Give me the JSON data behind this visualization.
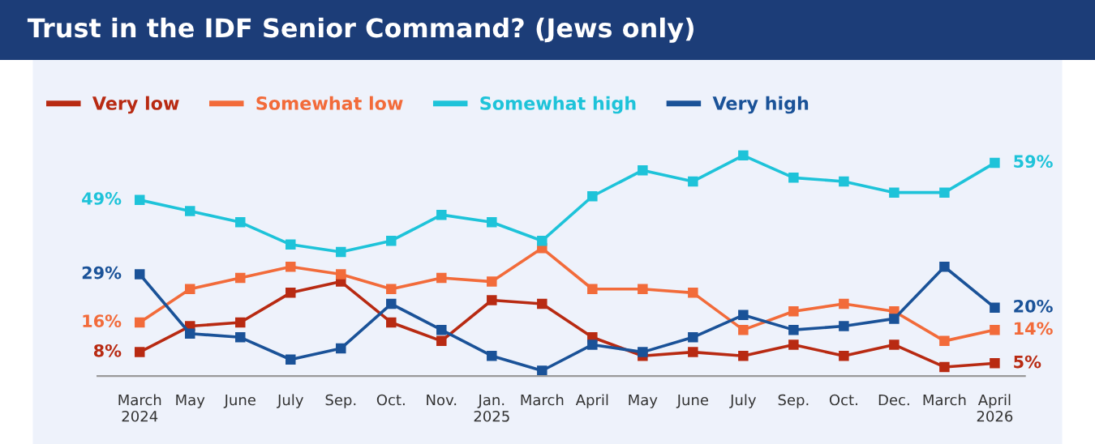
{
  "chart_data": {
    "type": "line",
    "title": "Trust in the IDF Senior Command? (Jews only)",
    "categories": [
      "March\n2024",
      "May",
      "June",
      "July",
      "Sep.",
      "Oct.",
      "Nov.",
      "Jan.\n2025",
      "March",
      "April",
      "May",
      "June",
      "July",
      "Sep.",
      "Oct.",
      "Dec.",
      "March",
      "April\n2026"
    ],
    "series": [
      {
        "name": "Very low",
        "color": "#b82a12",
        "values": [
          8,
          15,
          16,
          24,
          27,
          16,
          11,
          22,
          21,
          12,
          7,
          8,
          7,
          10,
          7,
          10,
          4,
          5
        ],
        "value_labels": [
          "8%",
          null,
          null,
          null,
          null,
          null,
          null,
          null,
          null,
          null,
          null,
          null,
          null,
          null,
          null,
          null,
          null,
          "5%"
        ]
      },
      {
        "name": "Somewhat low",
        "color": "#f26b3a",
        "values": [
          16,
          25,
          28,
          31,
          29,
          25,
          28,
          27,
          36,
          25,
          25,
          24,
          14,
          19,
          21,
          19,
          11,
          14
        ],
        "value_labels": [
          "16%",
          null,
          null,
          null,
          null,
          null,
          null,
          null,
          null,
          null,
          null,
          null,
          null,
          null,
          null,
          null,
          null,
          "14%"
        ]
      },
      {
        "name": "Somewhat high",
        "color": "#1ec3d9",
        "values": [
          49,
          46,
          43,
          37,
          35,
          38,
          45,
          43,
          38,
          50,
          57,
          54,
          61,
          55,
          54,
          51,
          51,
          59
        ],
        "value_labels": [
          "49%",
          null,
          null,
          null,
          null,
          null,
          null,
          null,
          null,
          null,
          null,
          null,
          null,
          null,
          null,
          null,
          null,
          "59%"
        ]
      },
      {
        "name": "Very high",
        "color": "#1a5298",
        "values": [
          29,
          13,
          12,
          6,
          9,
          21,
          14,
          7,
          3,
          10,
          8,
          12,
          18,
          14,
          15,
          17,
          31,
          20
        ],
        "value_labels": [
          "29%",
          null,
          null,
          null,
          null,
          null,
          null,
          null,
          null,
          null,
          null,
          null,
          null,
          null,
          null,
          null,
          null,
          "20%"
        ]
      }
    ],
    "tick_labels": "x",
    "marker": "square",
    "line_style": "solid",
    "legend": "top left",
    "grid": false
  }
}
